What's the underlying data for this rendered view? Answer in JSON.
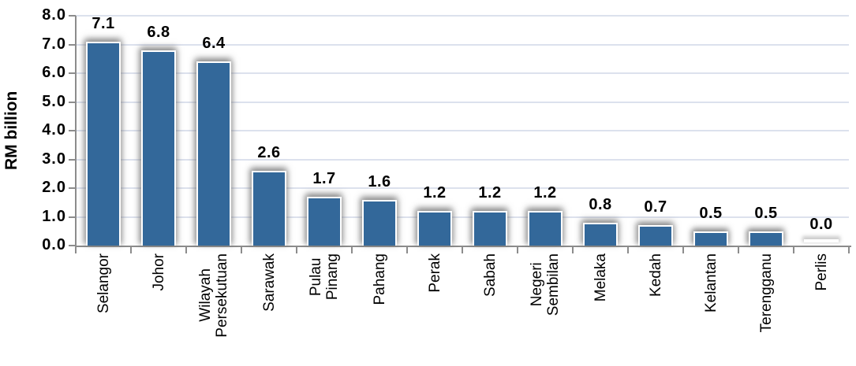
{
  "chart_data": {
    "type": "bar",
    "title": "",
    "ylabel": "RM billion",
    "xlabel": "",
    "categories": [
      "Selangor",
      "Johor",
      "Wilayah Persekutuan",
      "Sarawak",
      "Pulau Pinang",
      "Pahang",
      "Perak",
      "Sabah",
      "Negeri Sembilan",
      "Melaka",
      "Kedah",
      "Kelantan",
      "Terengganu",
      "Perlis"
    ],
    "category_lines": [
      [
        "Selangor"
      ],
      [
        "Johor"
      ],
      [
        "Wilayah",
        "Persekutuan"
      ],
      [
        "Sarawak"
      ],
      [
        "Pulau",
        "Pinang"
      ],
      [
        "Pahang"
      ],
      [
        "Perak"
      ],
      [
        "Sabah"
      ],
      [
        "Negeri",
        "Sembilan"
      ],
      [
        "Melaka"
      ],
      [
        "Kedah"
      ],
      [
        "Kelantan"
      ],
      [
        "Terengganu"
      ],
      [
        "Perlis"
      ]
    ],
    "values": [
      7.1,
      6.8,
      6.4,
      2.6,
      1.7,
      1.6,
      1.2,
      1.2,
      1.2,
      0.8,
      0.7,
      0.5,
      0.5,
      0.0
    ],
    "value_labels": [
      "7.1",
      "6.8",
      "6.4",
      "2.6",
      "1.7",
      "1.6",
      "1.2",
      "1.2",
      "1.2",
      "0.8",
      "0.7",
      "0.5",
      "0.5",
      "0.0"
    ],
    "yticks": [
      "8.0",
      "7.0",
      "6.0",
      "5.0",
      "4.0",
      "3.0",
      "2.0",
      "1.0",
      "0.0"
    ],
    "ylim": [
      0,
      8
    ],
    "grid": "horizontal",
    "legend": "none",
    "colors": {
      "bar": "#33689A",
      "gridline": "#DCE1ED",
      "axis": "#8C8C8C",
      "text": "#000000",
      "background": "#FFFFFF"
    }
  }
}
